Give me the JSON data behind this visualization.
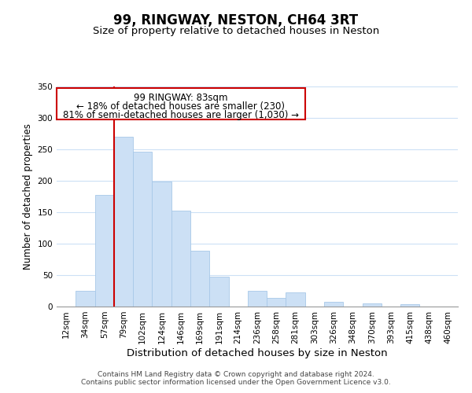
{
  "title": "99, RINGWAY, NESTON, CH64 3RT",
  "subtitle": "Size of property relative to detached houses in Neston",
  "xlabel": "Distribution of detached houses by size in Neston",
  "ylabel": "Number of detached properties",
  "bar_labels": [
    "12sqm",
    "34sqm",
    "57sqm",
    "79sqm",
    "102sqm",
    "124sqm",
    "146sqm",
    "169sqm",
    "191sqm",
    "214sqm",
    "236sqm",
    "258sqm",
    "281sqm",
    "303sqm",
    "326sqm",
    "348sqm",
    "370sqm",
    "393sqm",
    "415sqm",
    "438sqm",
    "460sqm"
  ],
  "bar_values": [
    0,
    25,
    177,
    270,
    246,
    199,
    153,
    89,
    48,
    0,
    25,
    14,
    22,
    0,
    8,
    0,
    5,
    0,
    4,
    0,
    0
  ],
  "bar_color": "#cce0f5",
  "bar_edge_color": "#a8c8e8",
  "vline_index": 3,
  "vline_color": "#cc0000",
  "ylim": [
    0,
    350
  ],
  "yticks": [
    0,
    50,
    100,
    150,
    200,
    250,
    300,
    350
  ],
  "annotation_title": "99 RINGWAY: 83sqm",
  "annotation_line1": "← 18% of detached houses are smaller (230)",
  "annotation_line2": "81% of semi-detached houses are larger (1,030) →",
  "footer1": "Contains HM Land Registry data © Crown copyright and database right 2024.",
  "footer2": "Contains public sector information licensed under the Open Government Licence v3.0.",
  "background_color": "#ffffff",
  "title_fontsize": 12,
  "subtitle_fontsize": 9.5,
  "xlabel_fontsize": 9.5,
  "ylabel_fontsize": 8.5,
  "tick_fontsize": 7.5,
  "annotation_title_fontsize": 8.5,
  "annotation_text_fontsize": 8.5,
  "footer_fontsize": 6.5,
  "grid_color": "#cce0f5"
}
